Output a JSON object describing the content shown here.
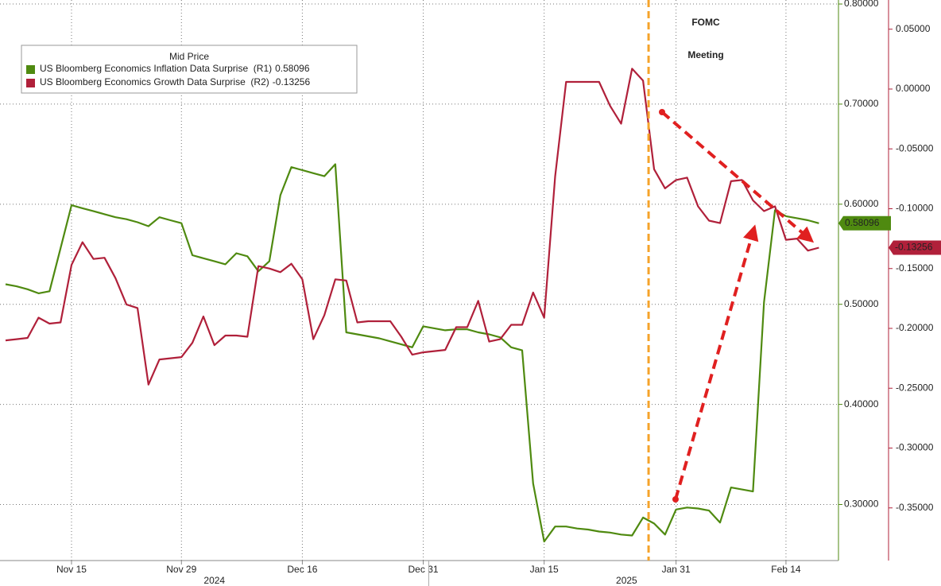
{
  "chart_data": {
    "type": "line",
    "legend_title": "Mid Price",
    "categories": [
      null,
      null,
      null,
      null,
      null,
      null,
      "Nov 15",
      null,
      null,
      null,
      null,
      null,
      null,
      null,
      null,
      null,
      "Nov 29",
      null,
      null,
      null,
      null,
      null,
      null,
      null,
      null,
      null,
      null,
      "Dec 16",
      null,
      null,
      null,
      null,
      null,
      null,
      null,
      null,
      null,
      null,
      "Dec 31",
      null,
      null,
      null,
      null,
      null,
      null,
      null,
      null,
      null,
      null,
      "Jan 15",
      null,
      null,
      null,
      null,
      null,
      null,
      null,
      null,
      null,
      null,
      null,
      "Jan 31",
      null,
      null,
      null,
      null,
      null,
      null,
      null,
      null,
      null,
      "Feb 14",
      null,
      null,
      null
    ],
    "x_groups": [
      {
        "label": "2024",
        "count": 39
      },
      {
        "label": "2025",
        "count": 36
      }
    ],
    "series": [
      {
        "name": "US Bloomberg Economics Inflation Data Surprise  (R1)",
        "color": "#4f8a10",
        "axis": "y",
        "values": [
          0.52,
          0.518,
          0.515,
          0.511,
          0.513,
          0.556,
          0.599,
          0.596,
          0.593,
          0.59,
          0.587,
          0.585,
          0.582,
          0.578,
          0.587,
          0.584,
          0.581,
          0.549,
          0.546,
          0.543,
          0.54,
          0.551,
          0.548,
          0.533,
          0.543,
          0.609,
          0.637,
          0.634,
          0.631,
          0.628,
          0.64,
          0.472,
          0.47,
          0.468,
          0.466,
          0.463,
          0.46,
          0.457,
          0.478,
          0.476,
          0.474,
          0.475,
          0.475,
          0.472,
          0.47,
          0.467,
          0.457,
          0.454,
          0.321,
          0.263,
          0.278,
          0.278,
          0.276,
          0.275,
          0.273,
          0.272,
          0.27,
          0.269,
          0.287,
          0.281,
          0.27,
          0.295,
          0.297,
          0.296,
          0.294,
          0.282,
          0.317,
          0.315,
          0.313,
          0.502,
          0.594,
          0.588,
          0.586,
          0.584,
          0.58096
        ]
      },
      {
        "name": "US Bloomberg Economics Growth Data Surprise  (R2)",
        "color": "#b0203a",
        "axis": "y2",
        "values": [
          -0.21,
          -0.209,
          -0.208,
          -0.191,
          -0.196,
          -0.195,
          -0.147,
          -0.128,
          -0.142,
          -0.141,
          -0.158,
          -0.18,
          -0.183,
          -0.247,
          -0.226,
          -0.225,
          -0.224,
          -0.212,
          -0.19,
          -0.214,
          -0.206,
          -0.206,
          -0.207,
          -0.148,
          -0.15,
          -0.153,
          -0.146,
          -0.159,
          -0.209,
          -0.189,
          -0.159,
          -0.16,
          -0.195,
          -0.194,
          -0.194,
          -0.194,
          -0.207,
          -0.222,
          -0.22,
          -0.219,
          -0.218,
          -0.199,
          -0.199,
          -0.177,
          -0.211,
          -0.209,
          -0.197,
          -0.197,
          -0.17,
          -0.191,
          -0.073,
          0.006,
          0.006,
          0.006,
          0.006,
          -0.014,
          -0.029,
          0.017,
          0.007,
          -0.067,
          -0.083,
          -0.076,
          -0.074,
          -0.098,
          -0.11,
          -0.112,
          -0.077,
          -0.076,
          -0.093,
          -0.102,
          -0.098,
          -0.126,
          -0.125,
          -0.135,
          -0.13256
        ]
      }
    ],
    "ylim": [
      0.244,
      0.804
    ],
    "yticks": [
      {
        "value": 0.3,
        "label": "0.30000"
      },
      {
        "value": 0.4,
        "label": "0.40000"
      },
      {
        "value": 0.5,
        "label": "0.50000"
      },
      {
        "value": 0.6,
        "label": "0.60000"
      },
      {
        "value": 0.7,
        "label": "0.70000"
      },
      {
        "value": 0.8,
        "label": "0.80000"
      }
    ],
    "y2lim": [
      -0.394,
      0.0744
    ],
    "y2ticks": [
      {
        "value": -0.35,
        "label": "-0.35000"
      },
      {
        "value": -0.3,
        "label": "-0.30000"
      },
      {
        "value": -0.25,
        "label": "-0.25000"
      },
      {
        "value": -0.2,
        "label": "-0.20000"
      },
      {
        "value": -0.15,
        "label": "-0.15000"
      },
      {
        "value": -0.1,
        "label": "-0.10000"
      },
      {
        "value": -0.05,
        "label": "-0.05000"
      },
      {
        "value": 0,
        "label": "0.00000"
      },
      {
        "value": 0.05,
        "label": "0.05000"
      }
    ],
    "grid": true,
    "annotation": {
      "lines": [
        "FOMC",
        "Meeting"
      ],
      "color": "#f5a32a"
    }
  }
}
